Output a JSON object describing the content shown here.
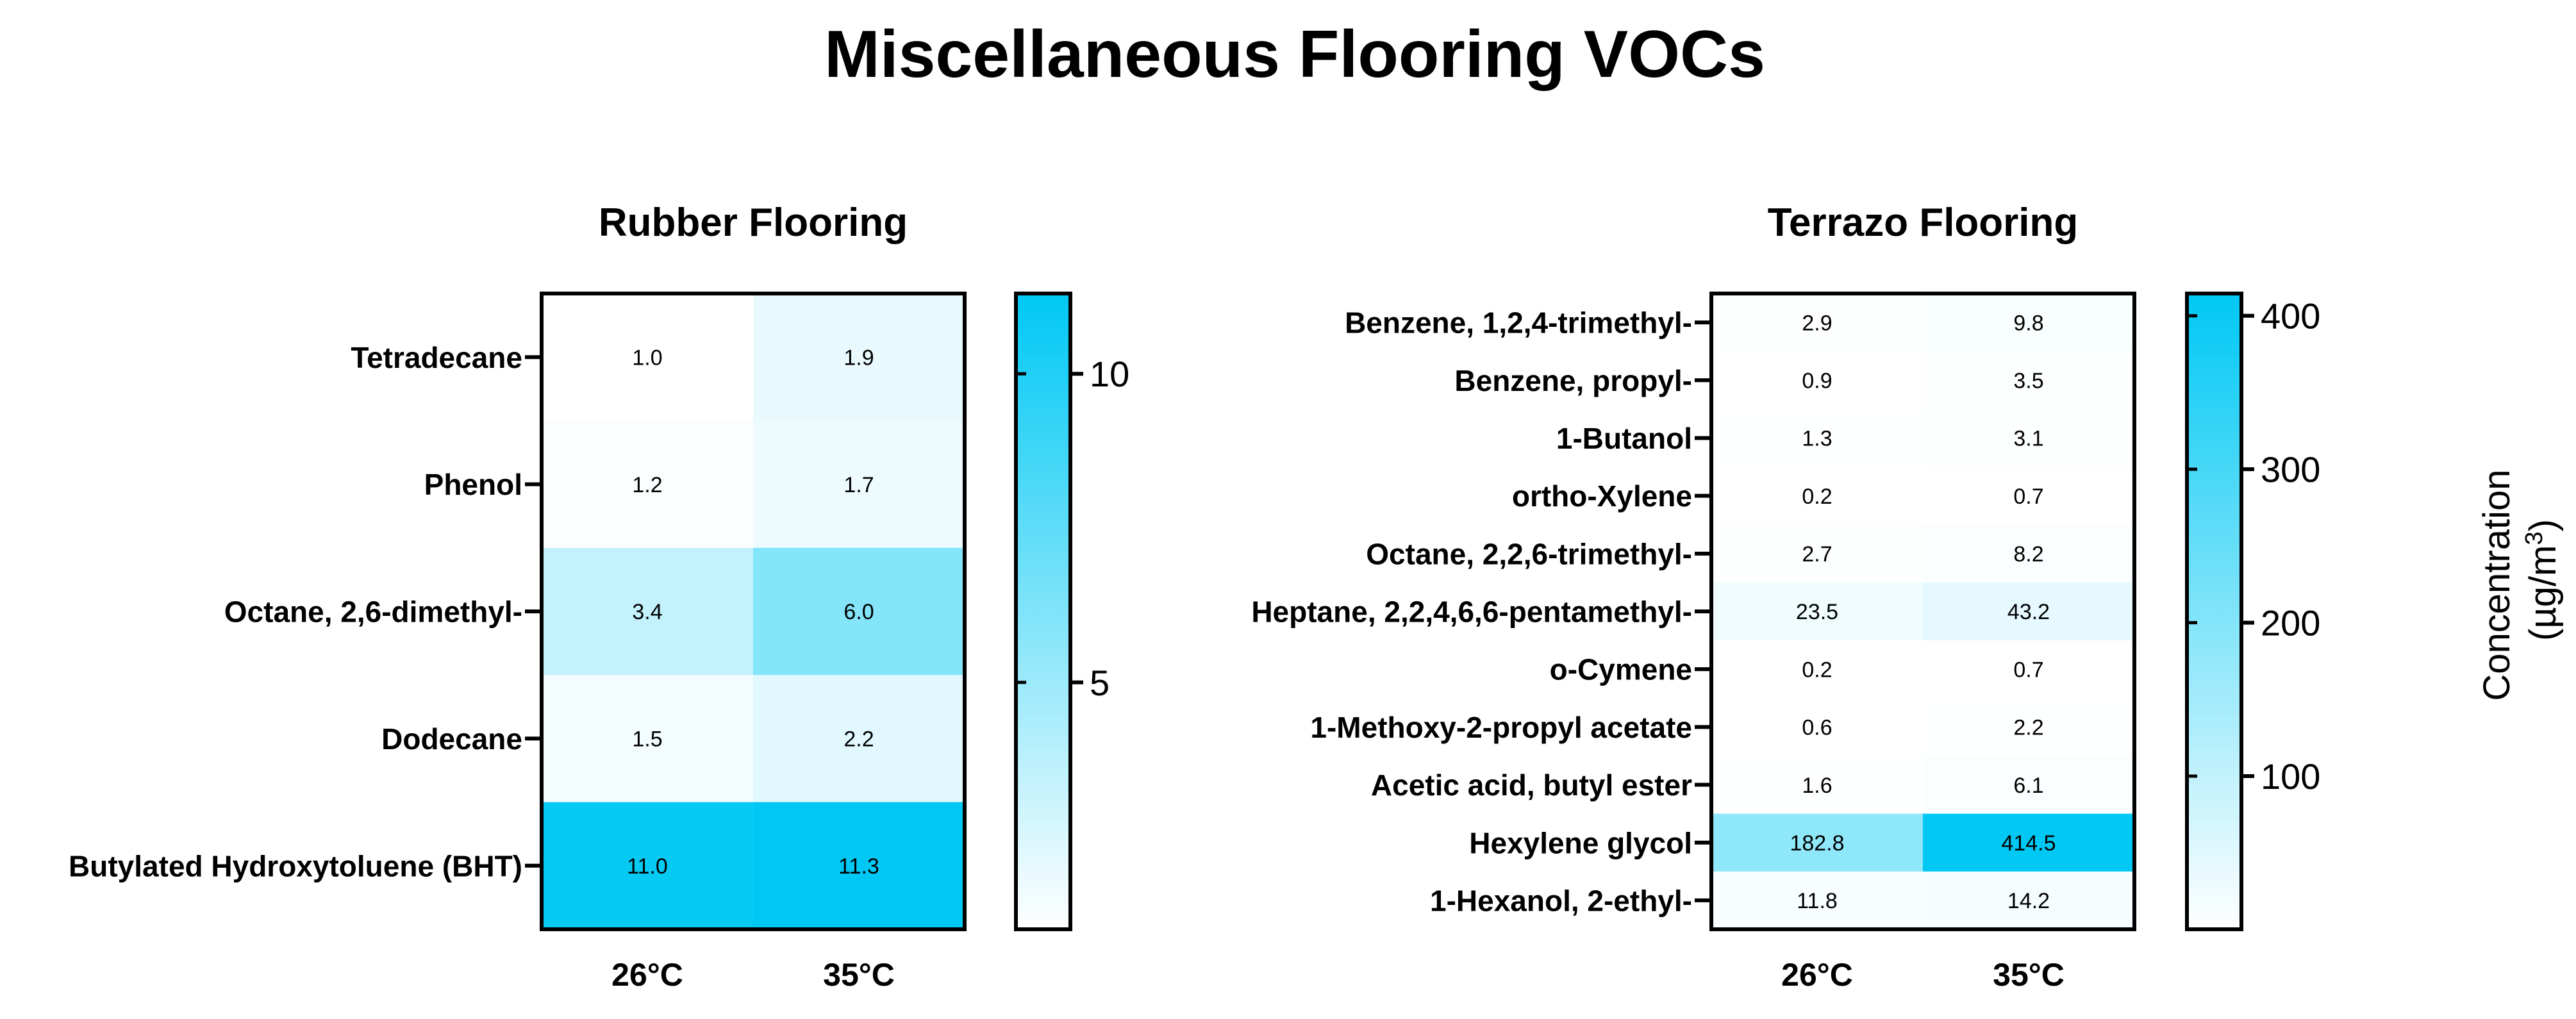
{
  "figure_title": "Miscellaneous Flooring VOCs",
  "colorbar_label_line1": "Concentration",
  "colorbar_label_line2_prefix": "(µg/m",
  "colorbar_label_line2_sup": "3",
  "colorbar_label_line2_suffix": ")",
  "colors": {
    "low": "#ffffff",
    "high": "#00c8f4",
    "axis": "#000000"
  },
  "chart_data": [
    {
      "type": "heatmap",
      "title": "Rubber Flooring",
      "columns": [
        "26°C",
        "35°C"
      ],
      "rows": [
        "Tetradecane",
        "Phenol",
        "Octane, 2,6-dimethyl-",
        "Dodecane",
        "Butylated Hydroxytoluene (BHT)"
      ],
      "values": [
        [
          1.0,
          1.9
        ],
        [
          1.2,
          1.7
        ],
        [
          3.4,
          6.0
        ],
        [
          1.5,
          2.2
        ],
        [
          11.0,
          11.3
        ]
      ],
      "value_labels": [
        [
          "1.0",
          "1.9"
        ],
        [
          "1.2",
          "1.7"
        ],
        [
          "3.4",
          "6.0"
        ],
        [
          "1.5",
          "2.2"
        ],
        [
          "11.0",
          "11.3"
        ]
      ],
      "color_range": [
        1.0,
        11.3
      ],
      "colorbar_ticks": [
        5,
        10
      ],
      "colorbar_tick_labels": [
        "5",
        "10"
      ]
    },
    {
      "type": "heatmap",
      "title": "Terrazo Flooring",
      "columns": [
        "26°C",
        "35°C"
      ],
      "rows": [
        "Benzene, 1,2,4-trimethyl-",
        "Benzene, propyl-",
        "1-Butanol",
        "ortho-Xylene",
        "Octane, 2,2,6-trimethyl-",
        "Heptane, 2,2,4,6,6-pentamethyl-",
        "o-Cymene",
        "1-Methoxy-2-propyl acetate",
        "Acetic acid, butyl ester",
        "Hexylene glycol",
        "1-Hexanol, 2-ethyl-"
      ],
      "values": [
        [
          2.9,
          9.8
        ],
        [
          0.9,
          3.5
        ],
        [
          1.3,
          3.1
        ],
        [
          0.2,
          0.7
        ],
        [
          2.7,
          8.2
        ],
        [
          23.5,
          43.2
        ],
        [
          0.2,
          0.7
        ],
        [
          0.6,
          2.2
        ],
        [
          1.6,
          6.1
        ],
        [
          182.8,
          414.5
        ],
        [
          11.8,
          14.2
        ]
      ],
      "value_labels": [
        [
          "2.9",
          "9.8"
        ],
        [
          "0.9",
          "3.5"
        ],
        [
          "1.3",
          "3.1"
        ],
        [
          "0.2",
          "0.7"
        ],
        [
          "2.7",
          "8.2"
        ],
        [
          "23.5",
          "43.2"
        ],
        [
          "0.2",
          "0.7"
        ],
        [
          "0.6",
          "2.2"
        ],
        [
          "1.6",
          "6.1"
        ],
        [
          "182.8",
          "414.5"
        ],
        [
          "11.8",
          "14.2"
        ]
      ],
      "color_range": [
        0.2,
        414.5
      ],
      "colorbar_ticks": [
        100,
        200,
        300,
        400
      ],
      "colorbar_tick_labels": [
        "100",
        "200",
        "300",
        "400"
      ]
    }
  ]
}
